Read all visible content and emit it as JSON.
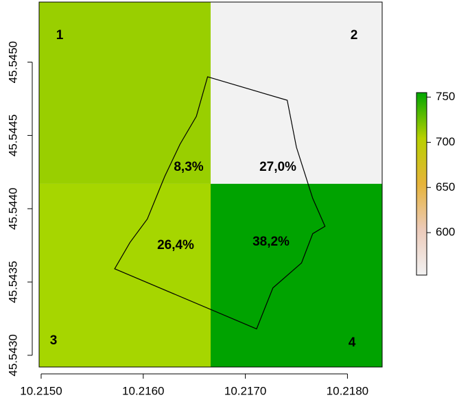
{
  "chart_data": {
    "type": "raster",
    "xlim": [
      10.21498,
      10.21834
    ],
    "ylim": [
      45.54292,
      45.54541
    ],
    "x_edges": [
      10.21498,
      10.21666,
      10.21834
    ],
    "y_edges": [
      45.54541,
      45.54417,
      45.54292
    ],
    "xticks": [
      {
        "value": 10.215,
        "label": "10.2150"
      },
      {
        "value": 10.216,
        "label": "10.2160"
      },
      {
        "value": 10.217,
        "label": "10.2170"
      },
      {
        "value": 10.218,
        "label": "10.2180"
      }
    ],
    "yticks": [
      {
        "value": 45.543,
        "label": "45.5430"
      },
      45.5435,
      {
        "value": 45.544,
        "label": "45.5440"
      },
      45.5445,
      {
        "value": 45.545,
        "label": "45.5450"
      }
    ],
    "cells": [
      {
        "label": "1",
        "share": "8,3%",
        "value": 700,
        "color": "#99cf00"
      },
      {
        "label": "2",
        "share": "27,0%",
        "value": 555,
        "color": "#f2f2f2"
      },
      {
        "label": "3",
        "share": "26,4%",
        "value": 692,
        "color": "#a6d600"
      },
      {
        "label": "4",
        "share": "38,2%",
        "value": 750,
        "color": "#00a300"
      }
    ],
    "polygon": {
      "x": [
        10.21663,
        10.21741,
        10.2175,
        10.21766,
        10.21778,
        10.21766,
        10.21755,
        10.21727,
        10.21711,
        10.21572,
        10.21587,
        10.21604,
        10.21621,
        10.21636,
        10.21652
      ],
      "y": [
        45.5449,
        45.54474,
        45.54442,
        45.54407,
        45.54388,
        45.54383,
        45.54363,
        45.54346,
        45.54318,
        45.54359,
        45.54377,
        45.54393,
        45.54422,
        45.54444,
        45.54463
      ]
    },
    "colorbar": {
      "lim": [
        553,
        755
      ],
      "ticks": [
        600,
        650,
        700,
        750
      ],
      "colors": [
        "#f2f2f2",
        "#eccab9",
        "#e6b43a",
        "#b8d000",
        "#00a600"
      ]
    }
  }
}
